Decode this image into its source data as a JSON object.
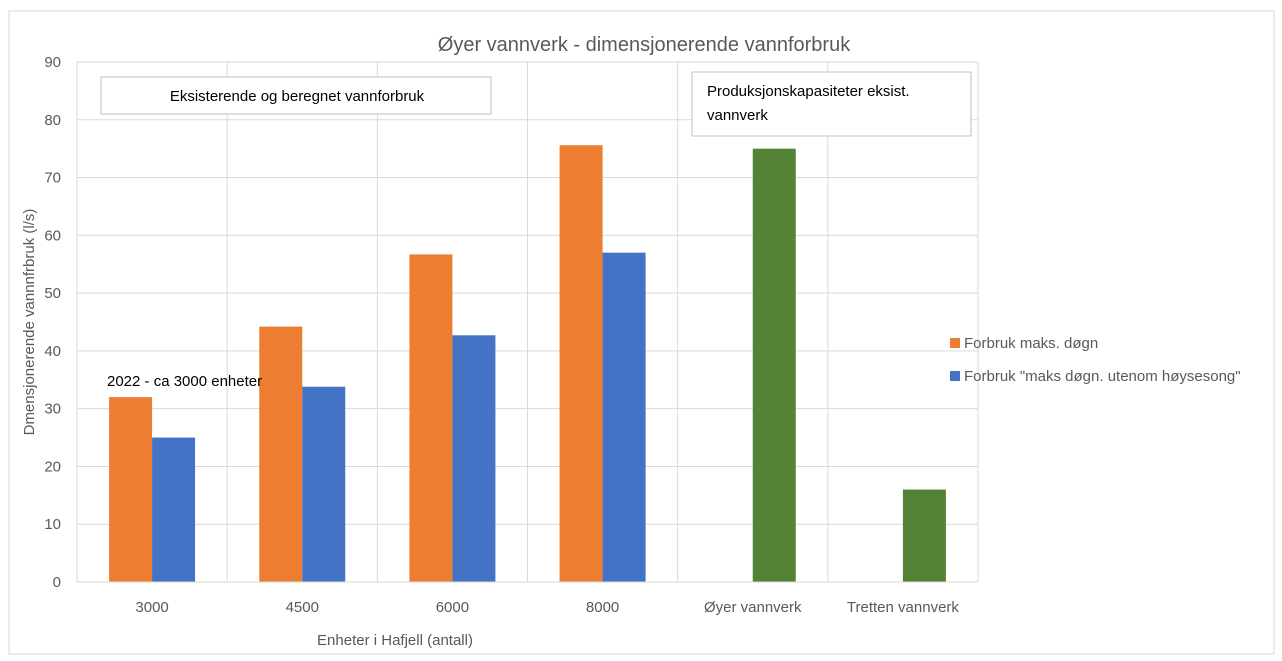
{
  "chart_data": {
    "type": "bar",
    "title": "Øyer vannverk - dimensjonerende vannforbruk",
    "xlabel": "Enheter i Hafjell (antall)",
    "ylabel": "Dmensjonerende vannnfrbruk (l/s)",
    "ylim": [
      0,
      90
    ],
    "yticks": [
      0,
      10,
      20,
      30,
      40,
      50,
      60,
      70,
      80,
      90
    ],
    "grid": true,
    "legend_position": "right",
    "categories": [
      "3000",
      "4500",
      "6000",
      "8000",
      "Øyer vannverk",
      "Tretten vannverk"
    ],
    "series": [
      {
        "name": "Forbruk maks. døgn",
        "color": "#ED7D31",
        "in_legend": true,
        "values": [
          32,
          44.2,
          56.7,
          75.6,
          null,
          null
        ]
      },
      {
        "name": "Forbruk \"maks døgn. utenom  høysesong\"",
        "color": "#4472C4",
        "in_legend": true,
        "values": [
          25,
          33.8,
          42.7,
          57,
          null,
          null
        ]
      },
      {
        "name": "",
        "color": "#548235",
        "in_legend": false,
        "values": [
          null,
          null,
          null,
          null,
          75,
          16
        ]
      }
    ],
    "annotations": {
      "box_left": "Eksisterende og beregnet vannforbruk",
      "box_right_line1": "Produksjonskapasiteter eksist.",
      "box_right_line2": "vannverk",
      "point_label": "2022 - ca 3000 enheter"
    }
  }
}
